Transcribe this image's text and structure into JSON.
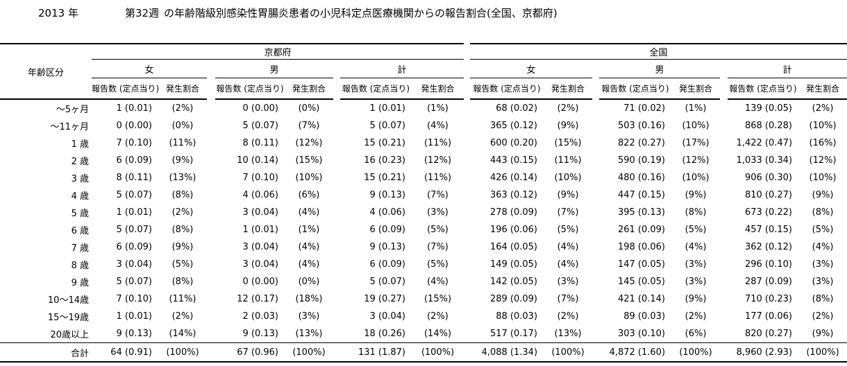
{
  "title": {
    "year": "2013 年",
    "week": "第32週",
    "rest": "の年齢階級別感染性胃腸炎患者の小児科定点医療機関からの報告割合(全国、京都府)"
  },
  "table": {
    "age_column_header": "年齢区分",
    "region_headers": [
      "京都府",
      "全国"
    ],
    "gender_headers": [
      "女",
      "男",
      "計"
    ],
    "metric_headers": {
      "count": "報告数 (定点当り)",
      "rate": "発生割合"
    },
    "rows": [
      {
        "age": "〜5ヶ月",
        "cells": [
          "1 (0.01)",
          "(2%)",
          "0 (0.00)",
          "(0%)",
          "1 (0.01)",
          "(1%)",
          "68 (0.02)",
          "(2%)",
          "71 (0.02)",
          "(1%)",
          "139 (0.05)",
          "(2%)"
        ]
      },
      {
        "age": "〜11ヶ月",
        "cells": [
          "0 (0.00)",
          "(0%)",
          "5 (0.07)",
          "(7%)",
          "5 (0.07)",
          "(4%)",
          "365 (0.12)",
          "(9%)",
          "503 (0.16)",
          "(10%)",
          "868 (0.28)",
          "(10%)"
        ]
      },
      {
        "age": "1 歳",
        "cells": [
          "7 (0.10)",
          "(11%)",
          "8 (0.11)",
          "(12%)",
          "15 (0.21)",
          "(11%)",
          "600 (0.20)",
          "(15%)",
          "822 (0.27)",
          "(17%)",
          "1,422 (0.47)",
          "(16%)"
        ]
      },
      {
        "age": "2 歳",
        "cells": [
          "6 (0.09)",
          "(9%)",
          "10 (0.14)",
          "(15%)",
          "16 (0.23)",
          "(12%)",
          "443 (0.15)",
          "(11%)",
          "590 (0.19)",
          "(12%)",
          "1,033 (0.34)",
          "(12%)"
        ]
      },
      {
        "age": "3 歳",
        "cells": [
          "8 (0.11)",
          "(13%)",
          "7 (0.10)",
          "(10%)",
          "15 (0.21)",
          "(11%)",
          "426 (0.14)",
          "(10%)",
          "480 (0.16)",
          "(10%)",
          "906 (0.30)",
          "(10%)"
        ]
      },
      {
        "age": "4 歳",
        "cells": [
          "5 (0.07)",
          "(8%)",
          "4 (0.06)",
          "(6%)",
          "9 (0.13)",
          "(7%)",
          "363 (0.12)",
          "(9%)",
          "447 (0.15)",
          "(9%)",
          "810 (0.27)",
          "(9%)"
        ]
      },
      {
        "age": "5 歳",
        "cells": [
          "1 (0.01)",
          "(2%)",
          "3 (0.04)",
          "(4%)",
          "4 (0.06)",
          "(3%)",
          "278 (0.09)",
          "(7%)",
          "395 (0.13)",
          "(8%)",
          "673 (0.22)",
          "(8%)"
        ]
      },
      {
        "age": "6 歳",
        "cells": [
          "5 (0.07)",
          "(8%)",
          "1 (0.01)",
          "(1%)",
          "6 (0.09)",
          "(5%)",
          "196 (0.06)",
          "(5%)",
          "261 (0.09)",
          "(5%)",
          "457 (0.15)",
          "(5%)"
        ]
      },
      {
        "age": "7 歳",
        "cells": [
          "6 (0.09)",
          "(9%)",
          "3 (0.04)",
          "(4%)",
          "9 (0.13)",
          "(7%)",
          "164 (0.05)",
          "(4%)",
          "198 (0.06)",
          "(4%)",
          "362 (0.12)",
          "(4%)"
        ]
      },
      {
        "age": "8 歳",
        "cells": [
          "3 (0.04)",
          "(5%)",
          "3 (0.04)",
          "(4%)",
          "6 (0.09)",
          "(5%)",
          "149 (0.05)",
          "(4%)",
          "147 (0.05)",
          "(3%)",
          "296 (0.10)",
          "(3%)"
        ]
      },
      {
        "age": "9 歳",
        "cells": [
          "5 (0.07)",
          "(8%)",
          "0 (0.00)",
          "(0%)",
          "5 (0.07)",
          "(4%)",
          "142 (0.05)",
          "(3%)",
          "145 (0.05)",
          "(3%)",
          "287 (0.09)",
          "(3%)"
        ]
      },
      {
        "age": "10〜14歳",
        "cells": [
          "7 (0.10)",
          "(11%)",
          "12 (0.17)",
          "(18%)",
          "19 (0.27)",
          "(15%)",
          "289 (0.09)",
          "(7%)",
          "421 (0.14)",
          "(9%)",
          "710 (0.23)",
          "(8%)"
        ]
      },
      {
        "age": "15〜19歳",
        "cells": [
          "1 (0.01)",
          "(2%)",
          "2 (0.03)",
          "(3%)",
          "3 (0.04)",
          "(2%)",
          "88 (0.03)",
          "(2%)",
          "89 (0.03)",
          "(2%)",
          "177 (0.06)",
          "(2%)"
        ]
      },
      {
        "age": "20歳以上",
        "cells": [
          "9 (0.13)",
          "(14%)",
          "9 (0.13)",
          "(13%)",
          "18 (0.26)",
          "(14%)",
          "517 (0.17)",
          "(13%)",
          "303 (0.10)",
          "(6%)",
          "820 (0.27)",
          "(9%)"
        ]
      }
    ],
    "total": {
      "age": "合計",
      "cells": [
        "64 (0.91)",
        "(100%)",
        "67 (0.96)",
        "(100%)",
        "131 (1.87)",
        "(100%)",
        "4,088 (1.34)",
        "(100%)",
        "4,872 (1.60)",
        "(100%)",
        "8,960 (2.93)",
        "(100%)"
      ]
    }
  }
}
